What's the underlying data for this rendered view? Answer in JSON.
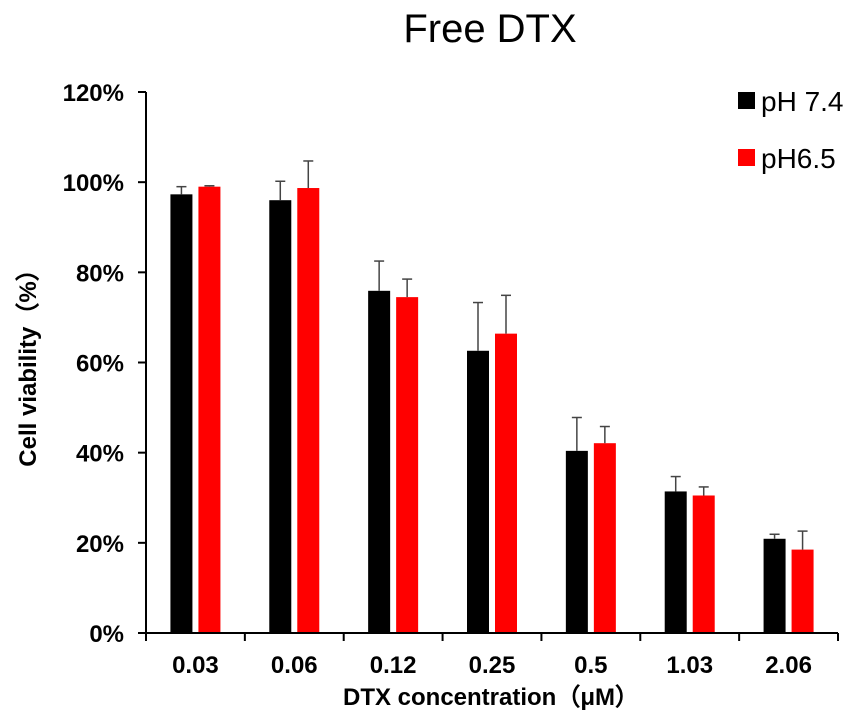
{
  "chart_data": {
    "type": "bar",
    "title": "Free DTX",
    "xlabel": "DTX concentration（μM）",
    "ylabel": "Cell viability（%）",
    "categories": [
      "0.03",
      "0.06",
      "0.12",
      "0.25",
      "0.5",
      "1.03",
      "2.06"
    ],
    "ylim": [
      0,
      120
    ],
    "yticks": [
      "0%",
      "20%",
      "40%",
      "60%",
      "80%",
      "100%",
      "120%"
    ],
    "grid": false,
    "legend_position": "top-right",
    "series": [
      {
        "name": "pH 7.4",
        "color": "#000000",
        "values": [
          97.3,
          96.0,
          75.9,
          62.6,
          40.4,
          31.4,
          20.9
        ],
        "errors": [
          1.7,
          4.2,
          6.6,
          10.7,
          7.4,
          3.3,
          1.0
        ]
      },
      {
        "name": "pH6.5",
        "color": "#ff0000",
        "values": [
          99.0,
          98.7,
          74.5,
          66.4,
          42.1,
          30.5,
          18.5
        ],
        "errors": [
          0.2,
          6.0,
          4.0,
          8.5,
          3.7,
          1.9,
          4.1
        ]
      }
    ]
  }
}
